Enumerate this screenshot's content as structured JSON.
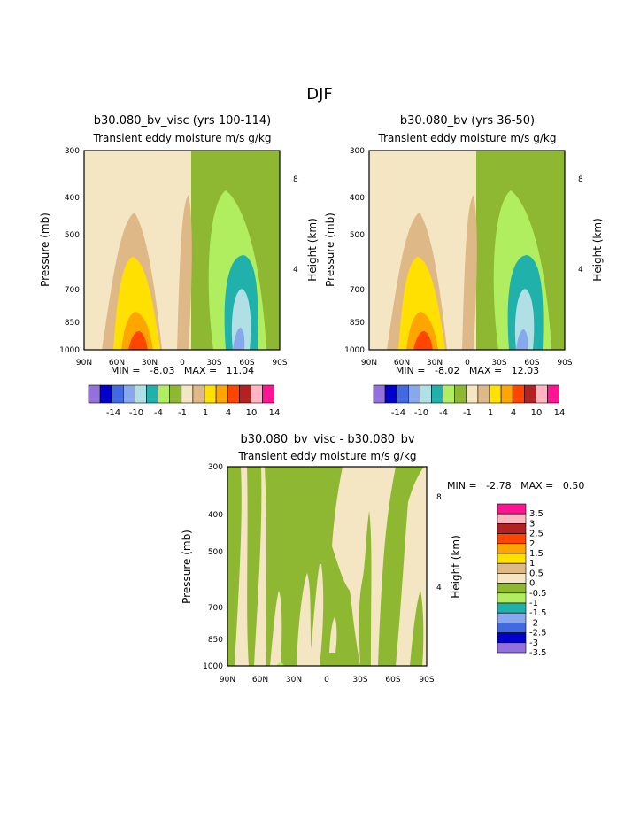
{
  "page_title": "DJF",
  "chart_data": [
    {
      "type": "heatmap",
      "title": "b30.080_bv_visc (yrs 100-114)",
      "subtitle": "Transient eddy moisture m/s g/kg",
      "ylabel": "Pressure (mb)",
      "y2label": "Height (km)",
      "xticks": [
        "90N",
        "60N",
        "30N",
        "0",
        "30S",
        "60S",
        "90S"
      ],
      "yticks": [
        "300",
        "400",
        "500",
        "700",
        "850",
        "1000"
      ],
      "y2ticks": [
        "8",
        "4"
      ],
      "stats": "MIN =   -8.03   MAX =   11.04",
      "colorbar_labels": [
        "-14",
        "-10",
        "-4",
        "-1",
        "1",
        "4",
        "10",
        "14"
      ]
    },
    {
      "type": "heatmap",
      "title": "b30.080_bv (yrs 36-50)",
      "subtitle": "Transient eddy moisture m/s g/kg",
      "ylabel": "Pressure (mb)",
      "y2label": "Height (km)",
      "xticks": [
        "90N",
        "60N",
        "30N",
        "0",
        "30S",
        "60S",
        "90S"
      ],
      "yticks": [
        "300",
        "400",
        "500",
        "700",
        "850",
        "1000"
      ],
      "y2ticks": [
        "8",
        "4"
      ],
      "stats": "MIN =   -8.02   MAX =   12.03",
      "colorbar_labels": [
        "-14",
        "-10",
        "-4",
        "-1",
        "1",
        "4",
        "10",
        "14"
      ]
    },
    {
      "type": "heatmap",
      "title": "b30.080_bv_visc - b30.080_bv",
      "subtitle": "Transient eddy moisture m/s g/kg",
      "ylabel": "Pressure (mb)",
      "y2label": "Height (km)",
      "xticks": [
        "90N",
        "60N",
        "30N",
        "0",
        "30S",
        "60S",
        "90S"
      ],
      "yticks": [
        "300",
        "400",
        "500",
        "700",
        "850",
        "1000"
      ],
      "y2ticks": [
        "8",
        "4"
      ],
      "stats": "MIN =   -2.78   MAX =   0.50",
      "legend_labels": [
        "3.5",
        "3",
        "2.5",
        "2",
        "1.5",
        "1",
        "0.5",
        "0",
        "-0.5",
        "-1",
        "-1.5",
        "-2",
        "-2.5",
        "-3",
        "-3.5"
      ]
    }
  ],
  "colors": {
    "palette": [
      "#9370db",
      "#0000cd",
      "#4169e1",
      "#87a8ec",
      "#b0e0e6",
      "#20b2aa",
      "#b0ee60",
      "#8fb832",
      "#f5e6c3",
      "#deb887",
      "#ffe000",
      "#ffa500",
      "#ff4500",
      "#b22222",
      "#ffb6c1",
      "#ff1493"
    ],
    "diff_legend": [
      "#ff1493",
      "#ffb6c1",
      "#b22222",
      "#ff4500",
      "#ffa500",
      "#ffe000",
      "#deb887",
      "#f5e6c3",
      "#8fb832",
      "#b0ee60",
      "#20b2aa",
      "#87a8ec",
      "#4169e1",
      "#0000cd",
      "#9370db"
    ]
  }
}
